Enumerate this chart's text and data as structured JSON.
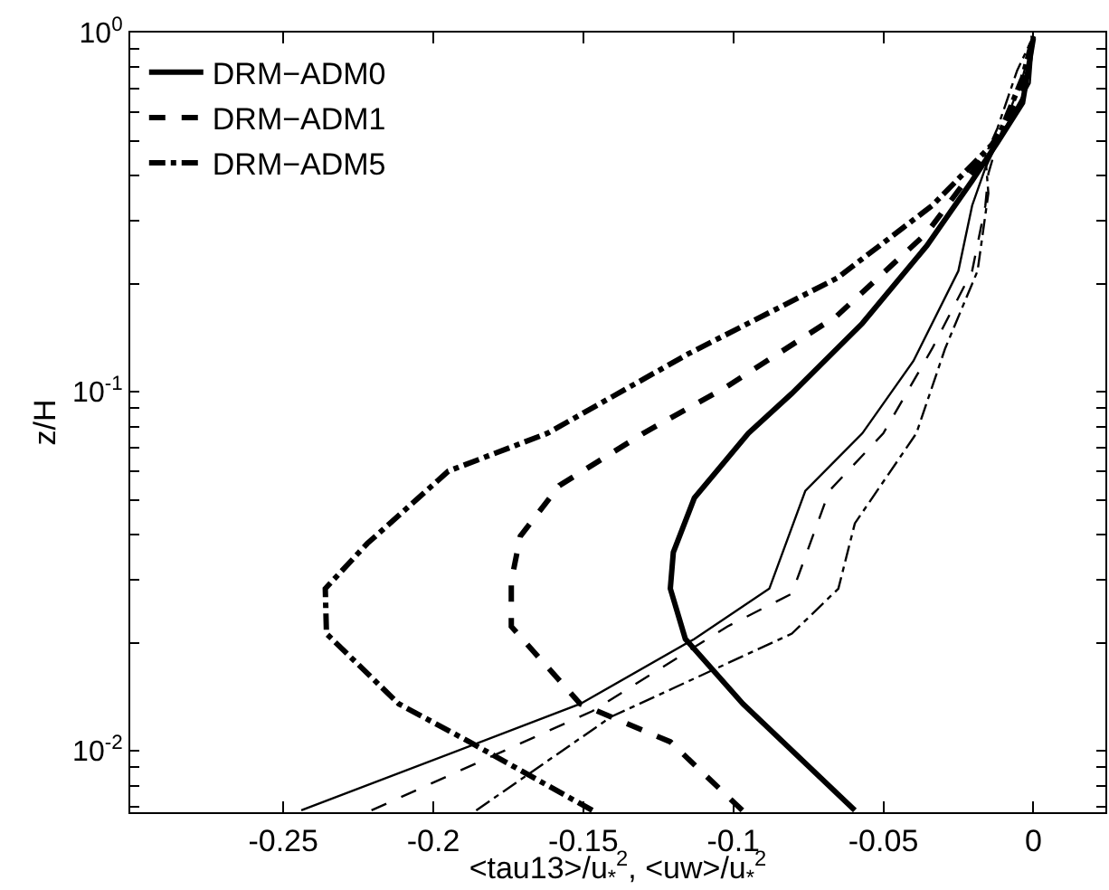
{
  "chart_data": {
    "type": "line",
    "xlabel": "<tau13>/u$_{*}$$^{2}$, <uw>/u$_{*}$$^{2}$",
    "ylabel": "z/H",
    "log": "y",
    "legend": "top left",
    "xlim": [
      -0.301,
      0.024
    ],
    "xticks": [
      -0.25,
      -0.2,
      -0.15,
      -0.1,
      -0.05,
      0
    ],
    "ylim": [
      0.00675,
      1
    ],
    "yticks": [
      {
        "value": 0.01,
        "label": "10$^{-2}$"
      },
      {
        "value": 0.1,
        "label": "10$^{-1}$"
      },
      {
        "value": 1,
        "label": "10$^{0}$"
      },
      {
        "value": 0.007,
        "label": null
      },
      {
        "value": 0.008,
        "label": null
      },
      {
        "value": 0.009,
        "label": null
      },
      {
        "value": 0.02,
        "label": null
      },
      {
        "value": 0.03,
        "label": null
      },
      {
        "value": 0.04,
        "label": null
      },
      {
        "value": 0.05,
        "label": null
      },
      {
        "value": 0.06,
        "label": null
      },
      {
        "value": 0.07,
        "label": null
      },
      {
        "value": 0.08,
        "label": null
      },
      {
        "value": 0.09,
        "label": null
      },
      {
        "value": 0.2,
        "label": null
      },
      {
        "value": 0.3,
        "label": null
      },
      {
        "value": 0.4,
        "label": null
      },
      {
        "value": 0.5,
        "label": null
      },
      {
        "value": 0.6,
        "label": null
      },
      {
        "value": 0.7,
        "label": null
      },
      {
        "value": 0.8,
        "label": null
      },
      {
        "value": 0.9,
        "label": null
      }
    ],
    "series": [
      {
        "name": "DRM−ADM0",
        "color": "#000000",
        "line_style": "solid",
        "x": [
          -0.0595,
          -0.0968,
          -0.116,
          -0.121,
          -0.12,
          -0.113,
          -0.095,
          -0.0805,
          -0.057,
          -0.0355,
          -0.0204,
          -0.012,
          -0.0036,
          0
        ],
        "values": [
          0.00683,
          0.01352,
          0.0205,
          0.0283,
          0.0357,
          0.0506,
          0.0766,
          0.0989,
          0.155,
          0.255,
          0.387,
          0.494,
          0.637,
          0.966
        ]
      },
      {
        "name": "DRM−ADM1",
        "color": "#000000",
        "line_style": "dashed",
        "x": [
          -0.097,
          -0.121,
          -0.151,
          -0.174,
          -0.174,
          -0.171,
          -0.158,
          -0.13,
          -0.102,
          -0.0655,
          -0.0355,
          -0.0144,
          -0.0036,
          0
        ],
        "values": [
          0.00683,
          0.0106,
          0.01352,
          0.0222,
          0.0297,
          0.0396,
          0.0548,
          0.0766,
          0.1035,
          0.1626,
          0.277,
          0.477,
          0.69,
          0.977
        ]
      },
      {
        "name": "DRM−ADM5",
        "color": "#000000",
        "line_style": "dashdot",
        "x": [
          -0.147,
          -0.188,
          -0.2115,
          -0.2356,
          -0.236,
          -0.222,
          -0.195,
          -0.162,
          -0.115,
          -0.0655,
          -0.0337,
          -0.012,
          -0.0036,
          0
        ],
        "values": [
          0.00683,
          0.0106,
          0.01352,
          0.0212,
          0.0283,
          0.0378,
          0.0601,
          0.0766,
          0.1275,
          0.207,
          0.33,
          0.505,
          0.749,
          0.977
        ]
      },
      {
        "color": "#000000",
        "line_style": "solid",
        "x": [
          -0.244,
          -0.151,
          -0.113,
          -0.088,
          -0.076,
          -0.057,
          -0.04,
          -0.025,
          -0.0204,
          -0.016,
          -0.012,
          -0.0012,
          0
        ],
        "values": [
          0.00683,
          0.01352,
          0.0205,
          0.0283,
          0.053,
          0.0766,
          0.1217,
          0.217,
          0.33,
          0.42,
          0.494,
          0.723,
          0.977
        ]
      },
      {
        "color": "#000000",
        "line_style": "dashed",
        "x": [
          -0.2206,
          -0.147,
          -0.102,
          -0.0805,
          -0.068,
          -0.05,
          -0.0337,
          -0.0204,
          -0.016,
          -0.015,
          -0.012,
          -0.0036,
          0
        ],
        "values": [
          0.00683,
          0.0129,
          0.0222,
          0.0274,
          0.053,
          0.0766,
          0.132,
          0.217,
          0.33,
          0.405,
          0.494,
          0.749,
          0.977
        ]
      },
      {
        "color": "#000000",
        "line_style": "dashdot",
        "x": [
          -0.1857,
          -0.1406,
          -0.0805,
          -0.065,
          -0.0595,
          -0.039,
          -0.0294,
          -0.0186,
          -0.015,
          -0.016,
          -0.012,
          -0.0054,
          0
        ],
        "values": [
          0.00683,
          0.01246,
          0.0212,
          0.0283,
          0.043,
          0.0766,
          0.132,
          0.217,
          0.357,
          0.455,
          0.541,
          0.784,
          0.977
        ]
      }
    ]
  }
}
